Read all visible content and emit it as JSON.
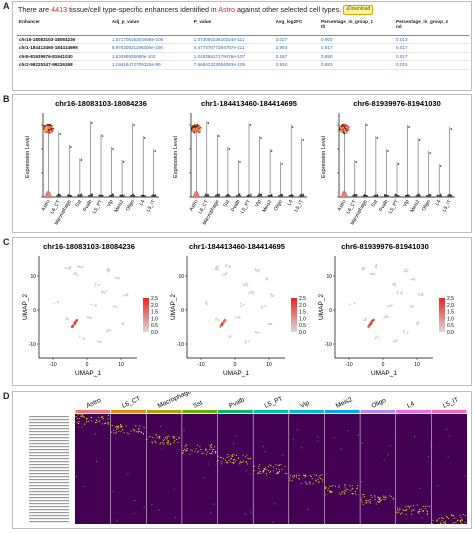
{
  "panel_labels": {
    "a": "A",
    "b": "B",
    "c": "C",
    "d": "D"
  },
  "headline": {
    "prefix": "There are ",
    "count": "4413",
    "middle": " tissue/cell type-specific enhancers identified in ",
    "cell_type": "Astro",
    "suffix": " against other selected cell types.",
    "download_label": "Download"
  },
  "table": {
    "headers": [
      "Enhancer",
      "Adj_p_value",
      "P_value",
      "Avg_log2FC",
      "Percentage_in_group_1\nth",
      "Percentage_in_group_2\nnd"
    ],
    "rows": [
      [
        "chr16-18083103-18084236",
        "1.67170616303468e-106",
        "1.07305023610224e-111",
        "3.027",
        "0.900",
        "0.013"
      ],
      [
        "chr1-184413460-184414695",
        "6.97630821199306e-106",
        "4.47737677394707e-111",
        "2.993",
        "0.917",
        "0.017"
      ],
      [
        "chr6-81939976-81941030",
        "1.63495936680e-102",
        "1.04935617179476e-107",
        "3.167",
        "0.890",
        "0.017"
      ],
      [
        "chr2-99225347-99226268",
        "1.19419472709325e-99",
        "7.66841322954063e-105",
        "2.934",
        "0.883",
        "0.015"
      ]
    ]
  },
  "violin": {
    "plots": [
      {
        "title": "chr16-18083103-18084236"
      },
      {
        "title": "chr1-184413460-184414695"
      },
      {
        "title": "chr6-81939976-81941030"
      }
    ],
    "ylabel": "Expression Level",
    "categories": [
      "Astro",
      "L6_CT",
      "Macrophage",
      "Sst",
      "Pvalb",
      "L5_PT",
      "Vip",
      "Meis2",
      "Oligo",
      "L4",
      "L5_IT"
    ]
  },
  "umap": {
    "plots": [
      {
        "title": "chr16-18083103-18084236"
      },
      {
        "title": "chr1-184413460-184414695"
      },
      {
        "title": "chr6-81939976-81941030"
      }
    ],
    "xlabel": "UMAP_1",
    "ylabel": "UMAP_2",
    "legend_ticks": [
      "2.5",
      "2.0",
      "1.5",
      "1.0",
      "0.5",
      "0.0"
    ],
    "colors": {
      "low": "#d9d9d9",
      "high": "#e8251f"
    }
  },
  "heatmap": {
    "groups": [
      "Astro",
      "L6_CT",
      "Macrophage",
      "Sst",
      "Pvalb",
      "L5_PT",
      "Vip",
      "Meis2",
      "Oligo",
      "L4",
      "L5_IT"
    ],
    "group_colors": [
      "#f8766d",
      "#db8e00",
      "#aea200",
      "#64b200",
      "#00bd5c",
      "#00c1a7",
      "#00bade",
      "#00a6ff",
      "#b385ff",
      "#ef67eb",
      "#ff63b6"
    ],
    "colors": {
      "background": "#440154",
      "high": "#fde725"
    }
  }
}
